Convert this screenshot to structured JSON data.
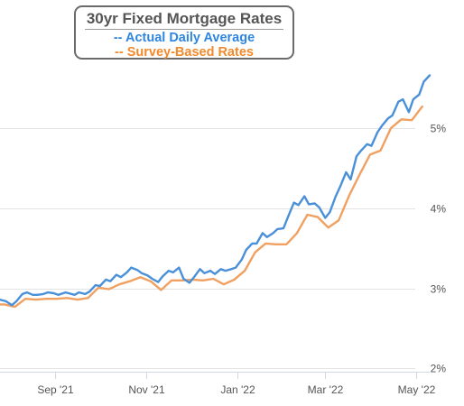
{
  "chart_data": {
    "type": "line",
    "title": "30yr Fixed Mortgage Rates",
    "xlabel": "",
    "ylabel": "",
    "x_range": [
      "2021-07-26",
      "2022-05-10"
    ],
    "ylim": [
      1.96,
      6.6
    ],
    "grid": true,
    "legend_position": "top-left",
    "x_ticks": [
      {
        "date": "2021-09-01",
        "label": "Sep '21"
      },
      {
        "date": "2021-11-01",
        "label": "Nov '21"
      },
      {
        "date": "2022-01-01",
        "label": "Jan '22"
      },
      {
        "date": "2022-03-01",
        "label": "Mar '22"
      },
      {
        "date": "2022-05-01",
        "label": "May '22"
      }
    ],
    "y_ticks": [
      {
        "value": 2,
        "label": "2%"
      },
      {
        "value": 3,
        "label": "3%"
      },
      {
        "value": 4,
        "label": "4%"
      },
      {
        "value": 5,
        "label": "5%"
      }
    ],
    "series": [
      {
        "name": "-- Actual Daily Average",
        "color": "#4a90d9",
        "points": [
          [
            "2021-07-26",
            2.86
          ],
          [
            "2021-07-30",
            2.84
          ],
          [
            "2021-08-03",
            2.79
          ],
          [
            "2021-08-06",
            2.84
          ],
          [
            "2021-08-10",
            2.93
          ],
          [
            "2021-08-13",
            2.95
          ],
          [
            "2021-08-17",
            2.92
          ],
          [
            "2021-08-20",
            2.92
          ],
          [
            "2021-08-24",
            2.93
          ],
          [
            "2021-08-27",
            2.95
          ],
          [
            "2021-08-31",
            2.94
          ],
          [
            "2021-09-03",
            2.92
          ],
          [
            "2021-09-08",
            2.95
          ],
          [
            "2021-09-10",
            2.94
          ],
          [
            "2021-09-14",
            2.92
          ],
          [
            "2021-09-17",
            2.95
          ],
          [
            "2021-09-21",
            2.93
          ],
          [
            "2021-09-24",
            2.96
          ],
          [
            "2021-09-28",
            3.04
          ],
          [
            "2021-10-01",
            3.03
          ],
          [
            "2021-10-05",
            3.11
          ],
          [
            "2021-10-08",
            3.09
          ],
          [
            "2021-10-12",
            3.17
          ],
          [
            "2021-10-15",
            3.14
          ],
          [
            "2021-10-19",
            3.2
          ],
          [
            "2021-10-22",
            3.26
          ],
          [
            "2021-10-26",
            3.23
          ],
          [
            "2021-10-29",
            3.19
          ],
          [
            "2021-11-02",
            3.16
          ],
          [
            "2021-11-05",
            3.12
          ],
          [
            "2021-11-09",
            3.08
          ],
          [
            "2021-11-12",
            3.15
          ],
          [
            "2021-11-16",
            3.22
          ],
          [
            "2021-11-19",
            3.2
          ],
          [
            "2021-11-23",
            3.26
          ],
          [
            "2021-11-26",
            3.12
          ],
          [
            "2021-11-30",
            3.07
          ],
          [
            "2021-12-03",
            3.14
          ],
          [
            "2021-12-07",
            3.24
          ],
          [
            "2021-12-10",
            3.19
          ],
          [
            "2021-12-14",
            3.22
          ],
          [
            "2021-12-17",
            3.18
          ],
          [
            "2021-12-21",
            3.24
          ],
          [
            "2021-12-24",
            3.22
          ],
          [
            "2021-12-28",
            3.24
          ],
          [
            "2021-12-31",
            3.26
          ],
          [
            "2022-01-04",
            3.36
          ],
          [
            "2022-01-07",
            3.48
          ],
          [
            "2022-01-11",
            3.56
          ],
          [
            "2022-01-14",
            3.56
          ],
          [
            "2022-01-18",
            3.69
          ],
          [
            "2022-01-21",
            3.64
          ],
          [
            "2022-01-25",
            3.69
          ],
          [
            "2022-01-28",
            3.74
          ],
          [
            "2022-02-01",
            3.75
          ],
          [
            "2022-02-04",
            3.89
          ],
          [
            "2022-02-08",
            4.07
          ],
          [
            "2022-02-11",
            4.04
          ],
          [
            "2022-02-15",
            4.15
          ],
          [
            "2022-02-18",
            4.05
          ],
          [
            "2022-02-22",
            4.06
          ],
          [
            "2022-02-25",
            4.01
          ],
          [
            "2022-03-01",
            3.88
          ],
          [
            "2022-03-04",
            3.95
          ],
          [
            "2022-03-08",
            4.15
          ],
          [
            "2022-03-11",
            4.27
          ],
          [
            "2022-03-15",
            4.45
          ],
          [
            "2022-03-18",
            4.36
          ],
          [
            "2022-03-22",
            4.65
          ],
          [
            "2022-03-25",
            4.72
          ],
          [
            "2022-03-29",
            4.8
          ],
          [
            "2022-04-01",
            4.78
          ],
          [
            "2022-04-05",
            4.95
          ],
          [
            "2022-04-08",
            5.03
          ],
          [
            "2022-04-12",
            5.12
          ],
          [
            "2022-04-15",
            5.16
          ],
          [
            "2022-04-19",
            5.33
          ],
          [
            "2022-04-22",
            5.36
          ],
          [
            "2022-04-26",
            5.2
          ],
          [
            "2022-04-29",
            5.36
          ],
          [
            "2022-05-03",
            5.42
          ],
          [
            "2022-05-06",
            5.58
          ],
          [
            "2022-05-10",
            5.66
          ]
        ]
      },
      {
        "name": "-- Survey-Based Rates",
        "color": "#f0a060",
        "points": [
          [
            "2021-07-26",
            2.8
          ],
          [
            "2021-07-29",
            2.8
          ],
          [
            "2021-08-05",
            2.77
          ],
          [
            "2021-08-12",
            2.87
          ],
          [
            "2021-08-19",
            2.86
          ],
          [
            "2021-08-26",
            2.87
          ],
          [
            "2021-09-02",
            2.87
          ],
          [
            "2021-09-09",
            2.88
          ],
          [
            "2021-09-16",
            2.86
          ],
          [
            "2021-09-23",
            2.88
          ],
          [
            "2021-09-30",
            3.01
          ],
          [
            "2021-10-07",
            2.99
          ],
          [
            "2021-10-14",
            3.05
          ],
          [
            "2021-10-21",
            3.09
          ],
          [
            "2021-10-28",
            3.14
          ],
          [
            "2021-11-04",
            3.09
          ],
          [
            "2021-11-11",
            2.98
          ],
          [
            "2021-11-18",
            3.1
          ],
          [
            "2021-11-25",
            3.1
          ],
          [
            "2021-12-02",
            3.11
          ],
          [
            "2021-12-09",
            3.1
          ],
          [
            "2021-12-16",
            3.12
          ],
          [
            "2021-12-23",
            3.05
          ],
          [
            "2021-12-30",
            3.11
          ],
          [
            "2022-01-06",
            3.22
          ],
          [
            "2022-01-13",
            3.45
          ],
          [
            "2022-01-20",
            3.56
          ],
          [
            "2022-01-27",
            3.55
          ],
          [
            "2022-02-03",
            3.55
          ],
          [
            "2022-02-10",
            3.69
          ],
          [
            "2022-02-17",
            3.92
          ],
          [
            "2022-02-24",
            3.89
          ],
          [
            "2022-03-03",
            3.76
          ],
          [
            "2022-03-10",
            3.85
          ],
          [
            "2022-03-17",
            4.16
          ],
          [
            "2022-03-24",
            4.42
          ],
          [
            "2022-03-31",
            4.67
          ],
          [
            "2022-04-07",
            4.72
          ],
          [
            "2022-04-14",
            5.0
          ],
          [
            "2022-04-21",
            5.11
          ],
          [
            "2022-04-28",
            5.1
          ],
          [
            "2022-05-05",
            5.27
          ]
        ]
      }
    ]
  }
}
